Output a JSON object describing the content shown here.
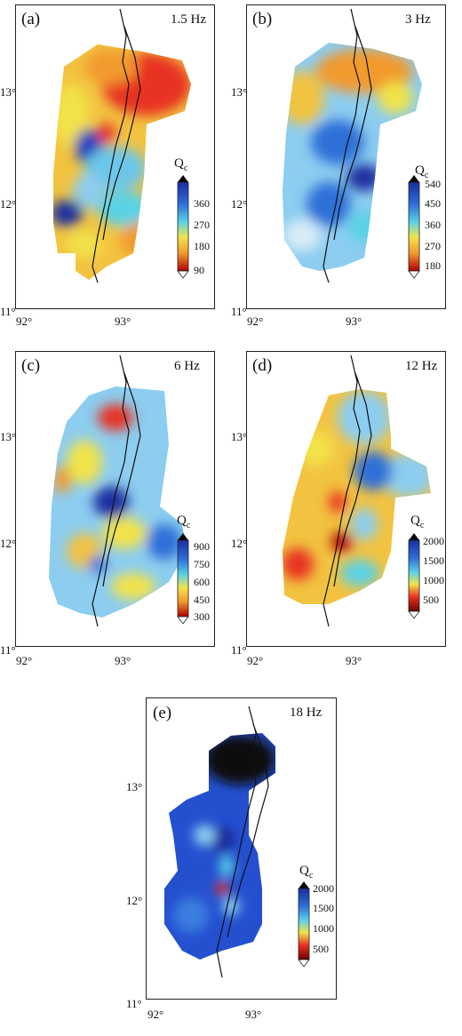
{
  "panels": [
    {
      "id": "a",
      "label": "(a)",
      "freq": "1.5 Hz",
      "colorbar": {
        "title": "Q",
        "sub": "c",
        "ticks": [
          "360",
          "270",
          "180",
          "90"
        ]
      },
      "lat_ticks": [
        "13°",
        "12°",
        "11°"
      ],
      "lon_ticks": [
        "92°",
        "93°"
      ]
    },
    {
      "id": "b",
      "label": "(b)",
      "freq": "3 Hz",
      "colorbar": {
        "title": "Q",
        "sub": "c",
        "ticks": [
          "540",
          "450",
          "360",
          "270",
          "180"
        ]
      },
      "lat_ticks": [
        "13°",
        "12°",
        "11°"
      ],
      "lon_ticks": [
        "92°",
        "93°"
      ]
    },
    {
      "id": "c",
      "label": "(c)",
      "freq": "6 Hz",
      "colorbar": {
        "title": "Q",
        "sub": "c",
        "ticks": [
          "900",
          "750",
          "600",
          "450",
          "300"
        ]
      },
      "lat_ticks": [
        "13°",
        "12°",
        "11°"
      ],
      "lon_ticks": [
        "92°",
        "93°"
      ]
    },
    {
      "id": "d",
      "label": "(d)",
      "freq": "12 Hz",
      "colorbar": {
        "title": "Q",
        "sub": "c",
        "ticks": [
          "2000",
          "1500",
          "1000",
          "500"
        ]
      },
      "lat_ticks": [
        "13°",
        "12°",
        "11°"
      ],
      "lon_ticks": [
        "92°",
        "93°"
      ]
    },
    {
      "id": "e",
      "label": "(e)",
      "freq": "18 Hz",
      "colorbar": {
        "title": "Q",
        "sub": "c",
        "ticks": [
          "2000",
          "1500",
          "1000",
          "500"
        ]
      },
      "lat_ticks": [
        "13°",
        "12°",
        "11°"
      ],
      "lon_ticks": [
        "92°",
        "93°"
      ]
    }
  ],
  "palette": {
    "dark_red": "#b00000",
    "red": "#e83020",
    "orange": "#f29a2e",
    "yellow": "#f2e34a",
    "cyan": "#5ad2e6",
    "light_blue": "#8ccdf0",
    "blue": "#2f6fd8",
    "dark_blue": "#1a2d9e",
    "black": "#080808"
  }
}
